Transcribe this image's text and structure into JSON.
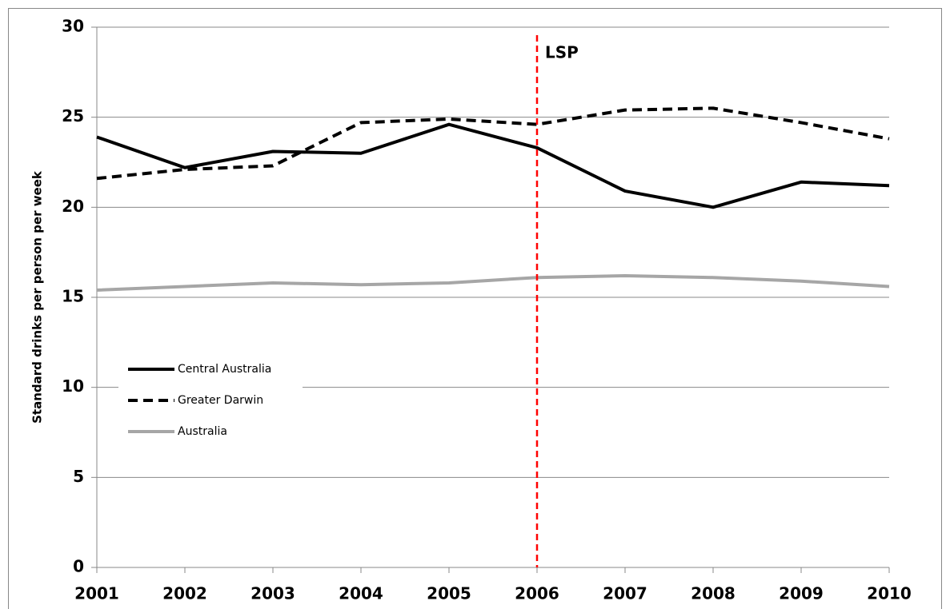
{
  "chart_data": {
    "type": "line",
    "y_label": "Standard drinks per person per week",
    "x": [
      2001,
      2002,
      2003,
      2004,
      2005,
      2006,
      2007,
      2008,
      2009,
      2010
    ],
    "xlim": [
      2001,
      2010
    ],
    "xticks": [
      2001,
      2002,
      2003,
      2004,
      2005,
      2006,
      2007,
      2008,
      2009,
      2010
    ],
    "ylim": [
      0,
      30
    ],
    "yticks": [
      0,
      5,
      10,
      15,
      20,
      25,
      30
    ],
    "grid": true,
    "legend": "center left",
    "series": [
      {
        "name": "Central Australia",
        "color": "#000000",
        "style": "solid",
        "values": [
          23.9,
          22.2,
          23.1,
          23.0,
          24.6,
          23.3,
          20.9,
          20.0,
          21.4,
          21.2
        ]
      },
      {
        "name": "Greater Darwin",
        "color": "#000000",
        "style": "dashed",
        "values": [
          21.6,
          22.1,
          22.3,
          24.7,
          24.9,
          24.6,
          25.4,
          25.5,
          24.7,
          23.8
        ]
      },
      {
        "name": "Australia",
        "color": "#a6a6a6",
        "style": "solid",
        "values": [
          15.4,
          15.6,
          15.8,
          15.7,
          15.8,
          16.1,
          16.2,
          16.1,
          15.9,
          15.6
        ]
      }
    ],
    "annotations": [
      {
        "x": 2006,
        "label": "LSP",
        "color": "#ff0000"
      }
    ]
  }
}
